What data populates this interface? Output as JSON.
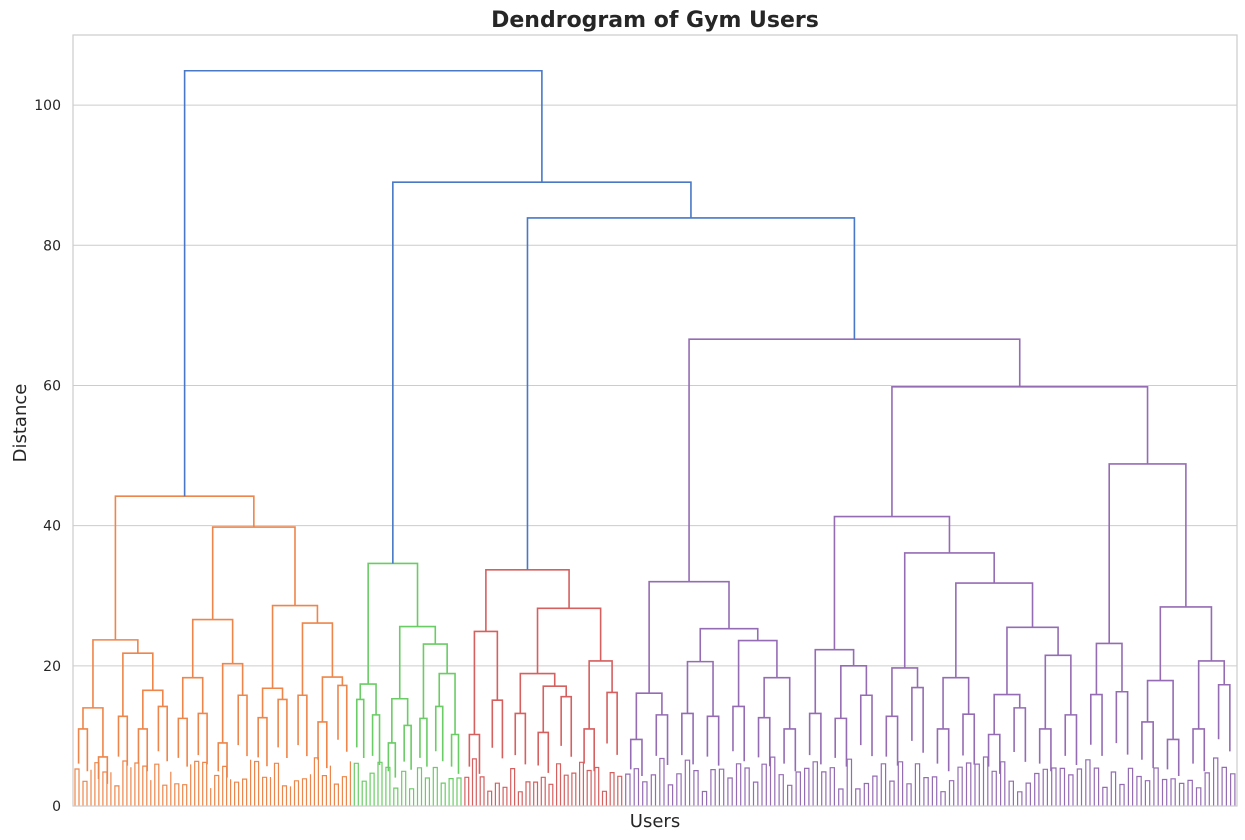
{
  "chart_data": {
    "type": "dendrogram",
    "title": "Dendrogram of Gym Users",
    "xlabel": "Users",
    "ylabel": "Distance",
    "ylim": [
      0,
      110
    ],
    "yticks": [
      0,
      20,
      40,
      60,
      80,
      100
    ],
    "grid": "horizontal",
    "link_color_above_threshold": "#4878c6",
    "clusters": [
      {
        "color": "#ee854a",
        "leaf_fraction": 0.24
      },
      {
        "color": "#6acc64",
        "leaf_fraction": 0.095
      },
      {
        "color": "#d65f5f",
        "leaf_fraction": 0.138
      },
      {
        "color": "#956cb4",
        "leaf_fraction": 0.527
      }
    ],
    "major_merges": [
      {
        "left": "orange-cluster",
        "right": "rest",
        "height": 104.9
      },
      {
        "left": "green-cluster",
        "right": "red+purple",
        "height": 89.0
      },
      {
        "left": "red-cluster",
        "right": "purple-cluster",
        "height": 83.9
      },
      {
        "cluster": "orange",
        "height": 44.2
      },
      {
        "cluster": "green",
        "height": 34.6
      },
      {
        "cluster": "red",
        "height": 33.7
      },
      {
        "cluster": "purple",
        "height": 66.6
      }
    ],
    "orange_tree": {
      "h": 44.2,
      "c": [
        {
          "h": 23.7,
          "c": [
            {
              "h": 14.0,
              "c": [
                {
                  "h": 11.0
                },
                {
                  "h": 7.0
                }
              ]
            },
            {
              "h": 21.8,
              "c": [
                {
                  "h": 12.8
                },
                {
                  "h": 16.5,
                  "c": [
                    {
                      "h": 11.0
                    },
                    {
                      "h": 14.2
                    }
                  ]
                }
              ]
            }
          ]
        },
        {
          "h": 39.8,
          "c": [
            {
              "h": 26.6,
              "c": [
                {
                  "h": 18.3,
                  "c": [
                    {
                      "h": 12.5
                    },
                    {
                      "h": 13.2
                    }
                  ]
                },
                {
                  "h": 20.3,
                  "c": [
                    {
                      "h": 9.0
                    },
                    {
                      "h": 15.8
                    }
                  ]
                }
              ]
            },
            {
              "h": 28.6,
              "c": [
                {
                  "h": 16.8,
                  "c": [
                    {
                      "h": 12.6
                    },
                    {
                      "h": 15.2
                    }
                  ]
                },
                {
                  "h": 26.1,
                  "c": [
                    {
                      "h": 15.8
                    },
                    {
                      "h": 18.4,
                      "c": [
                        {
                          "h": 12.0
                        },
                        {
                          "h": 17.2
                        }
                      ]
                    }
                  ]
                }
              ]
            }
          ]
        }
      ]
    },
    "green_tree": {
      "h": 34.6,
      "c": [
        {
          "h": 17.4,
          "c": [
            {
              "h": 15.2
            },
            {
              "h": 13.0
            }
          ]
        },
        {
          "h": 25.6,
          "c": [
            {
              "h": 15.3,
              "c": [
                {
                  "h": 9.0
                },
                {
                  "h": 11.5
                }
              ]
            },
            {
              "h": 23.1,
              "c": [
                {
                  "h": 12.5
                },
                {
                  "h": 18.9,
                  "c": [
                    {
                      "h": 14.2
                    },
                    {
                      "h": 10.2
                    }
                  ]
                }
              ]
            }
          ]
        }
      ]
    },
    "red_tree": {
      "h": 33.7,
      "c": [
        {
          "h": 24.9,
          "c": [
            {
              "h": 10.2
            },
            {
              "h": 15.1
            }
          ]
        },
        {
          "h": 28.2,
          "c": [
            {
              "h": 18.9,
              "c": [
                {
                  "h": 13.2
                },
                {
                  "h": 17.1,
                  "c": [
                    {
                      "h": 10.5
                    },
                    {
                      "h": 15.6
                    }
                  ]
                }
              ]
            },
            {
              "h": 20.7,
              "c": [
                {
                  "h": 11.0
                },
                {
                  "h": 16.2
                }
              ]
            }
          ]
        }
      ]
    },
    "purple_tree": {
      "h": 66.6,
      "c": [
        {
          "h": 32.0,
          "c": [
            {
              "h": 16.1,
              "c": [
                {
                  "h": 9.5
                },
                {
                  "h": 13.0
                }
              ]
            },
            {
              "h": 25.3,
              "c": [
                {
                  "h": 20.6,
                  "c": [
                    {
                      "h": 13.2
                    },
                    {
                      "h": 12.8
                    }
                  ]
                },
                {
                  "h": 23.6,
                  "c": [
                    {
                      "h": 14.2
                    },
                    {
                      "h": 18.3,
                      "c": [
                        {
                          "h": 12.6
                        },
                        {
                          "h": 11.0
                        }
                      ]
                    }
                  ]
                }
              ]
            }
          ]
        },
        {
          "h": 59.8,
          "c": [
            {
              "h": 41.3,
              "c": [
                {
                  "h": 22.3,
                  "c": [
                    {
                      "h": 13.2
                    },
                    {
                      "h": 20.0,
                      "c": [
                        {
                          "h": 12.5
                        },
                        {
                          "h": 15.8
                        }
                      ]
                    }
                  ]
                },
                {
                  "h": 36.1,
                  "c": [
                    {
                      "h": 19.7,
                      "c": [
                        {
                          "h": 12.8
                        },
                        {
                          "h": 16.9
                        }
                      ]
                    },
                    {
                      "h": 31.8,
                      "c": [
                        {
                          "h": 18.3,
                          "c": [
                            {
                              "h": 11.0
                            },
                            {
                              "h": 13.1
                            }
                          ]
                        },
                        {
                          "h": 25.5,
                          "c": [
                            {
                              "h": 15.9,
                              "c": [
                                {
                                  "h": 10.2
                                },
                                {
                                  "h": 14.0
                                }
                              ]
                            },
                            {
                              "h": 21.5,
                              "c": [
                                {
                                  "h": 11.0
                                },
                                {
                                  "h": 13.0
                                }
                              ]
                            }
                          ]
                        }
                      ]
                    }
                  ]
                }
              ]
            },
            {
              "h": 48.8,
              "c": [
                {
                  "h": 23.2,
                  "c": [
                    {
                      "h": 15.9
                    },
                    {
                      "h": 16.3
                    }
                  ]
                },
                {
                  "h": 28.4,
                  "c": [
                    {
                      "h": 17.9,
                      "c": [
                        {
                          "h": 12.0
                        },
                        {
                          "h": 9.5
                        }
                      ]
                    },
                    {
                      "h": 20.7,
                      "c": [
                        {
                          "h": 11.0
                        },
                        {
                          "h": 17.3
                        }
                      ]
                    }
                  ]
                }
              ]
            }
          ]
        }
      ]
    }
  }
}
